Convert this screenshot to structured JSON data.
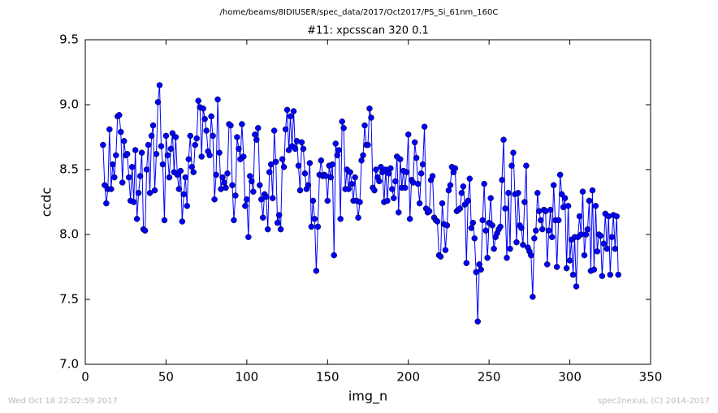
{
  "chart_data": {
    "type": "line",
    "suptitle": "/home/beams/8IDIUSER/spec_data/2017/Oct2017/PS_Si_61nm_160C",
    "title": "#11: xpcsscan 320 0.1",
    "xlabel": "img_n",
    "ylabel": "ccdc",
    "footer_left": "Wed Oct 18 22:02:59 2017",
    "footer_right": "spec2nexus, (C) 2014-2017",
    "xlim": [
      0,
      350
    ],
    "ylim": [
      7.0,
      9.5
    ],
    "xticks": [
      0,
      50,
      100,
      150,
      200,
      250,
      300,
      350
    ],
    "yticks": [
      {
        "value": 7.0,
        "label": "7.0"
      },
      7.5,
      {
        "value": 8.0,
        "label": "8.0"
      },
      8.5,
      {
        "value": 9.0,
        "label": "9.0"
      },
      9.5
    ],
    "grid": false,
    "x": [
      11,
      12,
      13,
      14,
      15,
      16,
      17,
      18,
      19,
      20,
      21,
      22,
      23,
      24,
      25,
      26,
      27,
      28,
      29,
      30,
      31,
      32,
      33,
      34,
      35,
      36,
      37,
      38,
      39,
      40,
      41,
      42,
      43,
      44,
      45,
      46,
      47,
      48,
      49,
      50,
      51,
      52,
      53,
      54,
      55,
      56,
      57,
      58,
      59,
      60,
      61,
      62,
      63,
      64,
      65,
      66,
      67,
      68,
      69,
      70,
      71,
      72,
      73,
      74,
      75,
      76,
      77,
      78,
      79,
      80,
      81,
      82,
      83,
      84,
      85,
      86,
      87,
      88,
      89,
      90,
      91,
      92,
      93,
      94,
      95,
      96,
      97,
      98,
      99,
      100,
      101,
      102,
      103,
      104,
      105,
      106,
      107,
      108,
      109,
      110,
      111,
      112,
      113,
      114,
      115,
      116,
      117,
      118,
      119,
      120,
      121,
      122,
      123,
      124,
      125,
      126,
      127,
      128,
      129,
      130,
      131,
      132,
      133,
      134,
      135,
      136,
      137,
      138,
      139,
      140,
      141,
      142,
      143,
      144,
      145,
      146,
      147,
      148,
      149,
      150,
      151,
      152,
      153,
      154,
      155,
      156,
      157,
      158,
      159,
      160,
      161,
      162,
      163,
      164,
      165,
      166,
      167,
      168,
      169,
      170,
      171,
      172,
      173,
      174,
      175,
      176,
      177,
      178,
      179,
      180,
      181,
      182,
      183,
      184,
      185,
      186,
      187,
      188,
      189,
      190,
      191,
      192,
      193,
      194,
      195,
      196,
      197,
      198,
      199,
      200,
      201,
      202,
      203,
      204,
      205,
      206,
      207,
      208,
      209,
      210,
      211,
      212,
      213,
      214,
      215,
      216,
      217,
      218,
      219,
      220,
      221,
      222,
      223,
      224,
      225,
      226,
      227,
      228,
      229,
      230,
      231,
      232,
      233,
      234,
      235,
      236,
      237,
      238,
      239,
      240,
      241,
      242,
      243,
      244,
      245,
      246,
      247,
      248,
      249,
      250,
      251,
      252,
      253,
      254,
      255,
      256,
      257,
      258,
      259,
      260,
      261,
      262,
      263,
      264,
      265,
      266,
      267,
      268,
      269,
      270,
      271,
      272,
      273,
      274,
      275,
      276,
      277,
      278,
      279,
      280,
      281,
      282,
      283,
      284,
      285,
      286,
      287,
      288,
      289,
      290,
      291,
      292,
      293,
      294,
      295,
      296,
      297,
      298,
      299,
      300,
      301,
      302,
      303,
      304,
      305,
      306,
      307,
      308,
      309,
      310,
      311,
      312,
      313,
      314,
      315,
      316,
      317,
      318,
      319,
      320,
      321,
      322,
      323,
      324,
      325,
      326,
      327,
      328,
      329,
      330
    ],
    "series": [
      {
        "color": "#0000ff",
        "values": [
          8.69,
          8.38,
          8.24,
          8.35,
          8.81,
          8.35,
          8.54,
          8.44,
          8.61,
          8.91,
          8.92,
          8.79,
          8.4,
          8.72,
          8.61,
          8.62,
          8.44,
          8.26,
          8.52,
          8.25,
          8.65,
          8.12,
          8.32,
          8.45,
          8.63,
          8.04,
          8.03,
          8.5,
          8.69,
          8.32,
          8.76,
          8.84,
          8.34,
          8.62,
          9.02,
          9.15,
          8.68,
          8.54,
          8.11,
          8.76,
          8.61,
          8.44,
          8.66,
          8.78,
          8.48,
          8.75,
          8.46,
          8.35,
          8.49,
          8.1,
          8.31,
          8.44,
          8.22,
          8.58,
          8.76,
          8.52,
          8.48,
          8.69,
          8.74,
          9.03,
          8.98,
          8.6,
          8.97,
          8.89,
          8.8,
          8.64,
          8.61,
          8.91,
          8.76,
          8.27,
          8.46,
          9.04,
          8.63,
          8.35,
          8.44,
          8.4,
          8.36,
          8.47,
          8.85,
          8.84,
          8.38,
          8.11,
          8.3,
          8.75,
          8.66,
          8.58,
          8.85,
          8.6,
          8.22,
          8.27,
          7.98,
          8.45,
          8.41,
          8.33,
          8.77,
          8.73,
          8.82,
          8.38,
          8.27,
          8.13,
          8.31,
          8.29,
          8.04,
          8.48,
          8.54,
          8.28,
          8.8,
          8.56,
          8.09,
          8.15,
          8.04,
          8.58,
          8.52,
          8.81,
          8.96,
          8.65,
          8.91,
          8.68,
          8.95,
          8.66,
          8.72,
          8.53,
          8.34,
          8.71,
          8.66,
          8.47,
          8.35,
          8.38,
          8.55,
          8.06,
          8.26,
          8.12,
          7.72,
          8.06,
          8.46,
          8.57,
          8.45,
          8.46,
          8.45,
          8.26,
          8.53,
          8.44,
          8.54,
          7.84,
          8.7,
          8.61,
          8.65,
          8.12,
          8.87,
          8.82,
          8.35,
          8.5,
          8.35,
          8.48,
          8.39,
          8.26,
          8.44,
          8.26,
          8.13,
          8.25,
          8.57,
          8.61,
          8.84,
          8.69,
          8.69,
          8.97,
          8.9,
          8.36,
          8.34,
          8.5,
          8.44,
          8.41,
          8.52,
          8.48,
          8.25,
          8.5,
          8.26,
          8.47,
          8.51,
          8.35,
          8.28,
          8.41,
          8.6,
          8.17,
          8.58,
          8.36,
          8.49,
          8.36,
          8.48,
          8.77,
          8.12,
          8.42,
          8.4,
          8.71,
          8.59,
          8.39,
          8.24,
          8.47,
          8.54,
          8.83,
          8.2,
          8.17,
          8.18,
          8.42,
          8.45,
          8.13,
          8.11,
          8.1,
          7.84,
          7.83,
          8.24,
          8.08,
          7.88,
          8.07,
          8.34,
          8.38,
          8.52,
          8.48,
          8.51,
          8.18,
          8.19,
          8.2,
          8.32,
          8.37,
          8.23,
          7.78,
          8.26,
          8.43,
          8.05,
          8.09,
          7.97,
          7.71,
          7.33,
          7.77,
          7.73,
          8.11,
          8.39,
          8.03,
          7.82,
          8.09,
          8.28,
          8.07,
          7.89,
          7.98,
          8.01,
          8.04,
          8.06,
          8.42,
          8.73,
          8.2,
          7.82,
          8.32,
          7.89,
          8.53,
          8.63,
          8.31,
          7.94,
          8.32,
          8.07,
          8.05,
          7.92,
          8.25,
          8.53,
          7.9,
          7.87,
          7.84,
          7.52,
          7.97,
          8.03,
          8.32,
          8.18,
          8.11,
          8.04,
          8.19,
          8.18,
          7.77,
          8.03,
          8.19,
          7.98,
          8.38,
          8.11,
          7.75,
          8.11,
          8.46,
          8.31,
          8.21,
          8.28,
          7.74,
          8.22,
          7.8,
          7.96,
          7.69,
          7.98,
          7.6,
          7.98,
          8.14,
          8.0,
          8.33,
          7.84,
          8.0,
          8.04,
          8.26,
          7.72,
          8.34,
          7.73,
          8.22,
          7.87,
          8.0,
          7.99,
          7.68,
          7.93,
          8.16,
          7.89,
          8.14,
          7.69,
          7.98,
          8.15,
          7.89,
          8.14,
          7.69
        ]
      }
    ]
  }
}
